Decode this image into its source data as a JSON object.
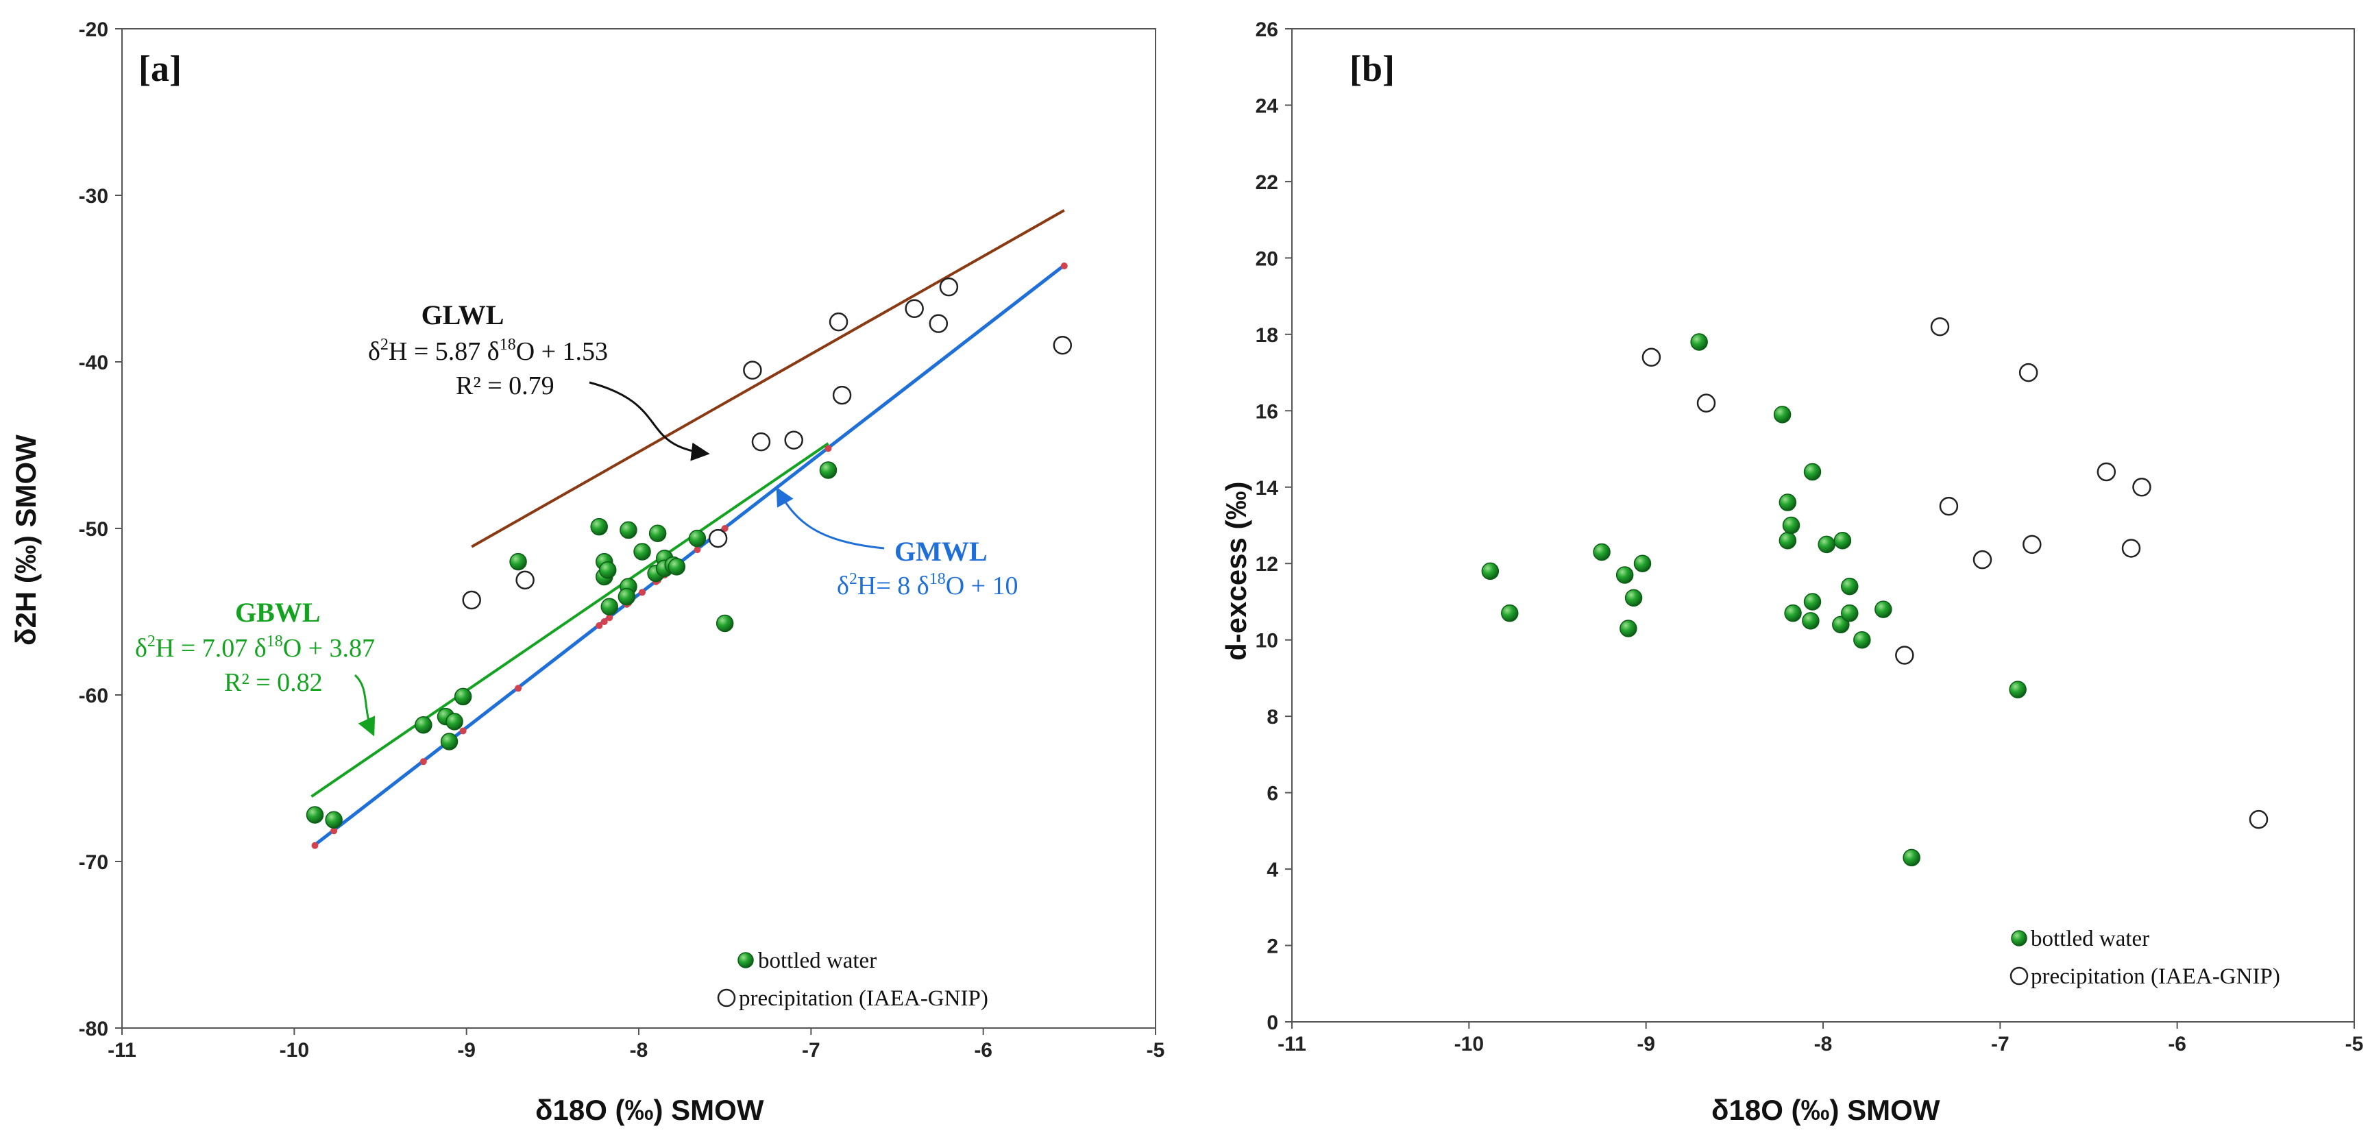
{
  "colors": {
    "bottled": "#1f9c2a",
    "bottled_edge": "#0c5e16",
    "precip_edge": "#222222",
    "gmwl": "#1f6fd8",
    "gbwl": "#14a320",
    "glwl": "#8a3a12",
    "gmwl_points": "#d2424e",
    "axis": "#555555"
  },
  "chart_data": [
    {
      "id": "a",
      "type": "scatter",
      "panel_label": "[a]",
      "xlabel": "δ18O (‰) SMOW",
      "ylabel": "δ2H (‰) SMOW",
      "xlim": [
        -11,
        -5
      ],
      "ylim": [
        -80,
        -20
      ],
      "x_ticks": [
        -11,
        -10,
        -9,
        -8,
        -7,
        -6,
        -5
      ],
      "y_ticks": [
        -80,
        -70,
        -60,
        -50,
        -40,
        -30,
        -20
      ],
      "x_tick_labels": [
        "-11",
        "-10",
        "-9",
        "-8",
        "-7",
        "-6",
        "-5"
      ],
      "y_tick_labels": [
        "-80",
        "-70",
        "-60",
        "-50",
        "-40",
        "-30",
        "-20"
      ],
      "series": [
        {
          "name": "bottled water",
          "marker": "filled",
          "points": [
            [
              -9.88,
              -67.2
            ],
            [
              -9.77,
              -67.5
            ],
            [
              -9.25,
              -61.8
            ],
            [
              -9.12,
              -61.3
            ],
            [
              -9.07,
              -61.6
            ],
            [
              -9.1,
              -62.8
            ],
            [
              -9.02,
              -60.1
            ],
            [
              -8.7,
              -52.0
            ],
            [
              -8.23,
              -49.9
            ],
            [
              -8.2,
              -52.0
            ],
            [
              -8.2,
              -52.9
            ],
            [
              -8.18,
              -52.5
            ],
            [
              -8.17,
              -54.7
            ],
            [
              -8.06,
              -50.1
            ],
            [
              -8.06,
              -53.5
            ],
            [
              -8.07,
              -54.1
            ],
            [
              -7.98,
              -51.4
            ],
            [
              -7.9,
              -52.7
            ],
            [
              -7.89,
              -50.3
            ],
            [
              -7.85,
              -51.8
            ],
            [
              -7.85,
              -52.4
            ],
            [
              -7.8,
              -52.2
            ],
            [
              -7.78,
              -52.3
            ],
            [
              -7.66,
              -50.6
            ],
            [
              -7.5,
              -55.7
            ],
            [
              -6.9,
              -46.5
            ]
          ]
        },
        {
          "name": "precipitation (IAEA-GNIP)",
          "marker": "open",
          "points": [
            [
              -8.97,
              -54.3
            ],
            [
              -8.66,
              -53.1
            ],
            [
              -7.54,
              -50.6
            ],
            [
              -7.34,
              -40.5
            ],
            [
              -7.29,
              -44.8
            ],
            [
              -7.1,
              -44.7
            ],
            [
              -6.84,
              -37.6
            ],
            [
              -6.82,
              -42.0
            ],
            [
              -6.4,
              -36.8
            ],
            [
              -6.26,
              -37.7
            ],
            [
              -6.2,
              -35.5
            ],
            [
              -5.54,
              -39.0
            ]
          ]
        }
      ],
      "lines": [
        {
          "name": "GMWL",
          "x": [
            -9.88,
            -5.53
          ],
          "y": [
            -69.0,
            -34.2
          ]
        },
        {
          "name": "GBWL",
          "x": [
            -9.9,
            -6.9
          ],
          "y": [
            -66.1,
            -44.9
          ]
        },
        {
          "name": "GLWL",
          "x": [
            -8.97,
            -5.53
          ],
          "y": [
            -51.1,
            -30.9
          ]
        }
      ],
      "gmwl_points_x": [
        -9.88,
        -9.77,
        -9.25,
        -9.1,
        -9.02,
        -8.7,
        -8.23,
        -8.2,
        -8.17,
        -8.07,
        -8.06,
        -7.98,
        -7.9,
        -7.89,
        -7.85,
        -7.8,
        -7.66,
        -7.5,
        -6.9,
        -5.53
      ],
      "annotations": {
        "glwl_title": "GLWL",
        "glwl_eq_1": "δ",
        "glwl_eq_2": "2",
        "glwl_eq_3": "H = 5.87 δ",
        "glwl_eq_4": "18",
        "glwl_eq_5": "O + 1.53",
        "glwl_r2": "R² = 0.79",
        "gmwl_title": "GMWL",
        "gmwl_eq_1": "δ",
        "gmwl_eq_2": "2",
        "gmwl_eq_3": "H= 8 δ",
        "gmwl_eq_4": "18",
        "gmwl_eq_5": "O + 10",
        "gbwl_title": "GBWL",
        "gbwl_eq_1": "δ",
        "gbwl_eq_2": "2",
        "gbwl_eq_3": "H = 7.07 δ",
        "gbwl_eq_4": "18",
        "gbwl_eq_5": "O + 3.87",
        "gbwl_r2": "R² = 0.82"
      },
      "legend": {
        "position": "bottom-right",
        "entries": [
          "bottled water",
          "precipitation (IAEA-GNIP)"
        ]
      }
    },
    {
      "id": "b",
      "type": "scatter",
      "panel_label": "[b]",
      "xlabel": "δ18O (‰) SMOW",
      "ylabel": "d-excess  (‰)",
      "xlim": [
        -11,
        -5
      ],
      "ylim": [
        0,
        26
      ],
      "x_ticks": [
        -11,
        -10,
        -9,
        -8,
        -7,
        -6,
        -5
      ],
      "y_ticks": [
        0,
        2,
        4,
        6,
        8,
        10,
        12,
        14,
        16,
        18,
        20,
        22,
        24,
        26
      ],
      "x_tick_labels": [
        "-11",
        "-10",
        "-9",
        "-8",
        "-7",
        "-6",
        "-5"
      ],
      "y_tick_labels": [
        "0",
        "2",
        "4",
        "6",
        "8",
        "10",
        "12",
        "14",
        "16",
        "18",
        "20",
        "22",
        "24",
        "26"
      ],
      "series": [
        {
          "name": "bottled water",
          "marker": "filled",
          "points": [
            [
              -9.88,
              11.8
            ],
            [
              -9.77,
              10.7
            ],
            [
              -9.25,
              12.3
            ],
            [
              -9.12,
              11.7
            ],
            [
              -9.07,
              11.1
            ],
            [
              -9.1,
              10.3
            ],
            [
              -9.02,
              12.0
            ],
            [
              -8.7,
              17.8
            ],
            [
              -8.23,
              15.9
            ],
            [
              -8.2,
              13.6
            ],
            [
              -8.2,
              12.6
            ],
            [
              -8.18,
              13.0
            ],
            [
              -8.17,
              10.7
            ],
            [
              -8.06,
              14.4
            ],
            [
              -8.06,
              11.0
            ],
            [
              -8.07,
              10.5
            ],
            [
              -7.98,
              12.5
            ],
            [
              -7.9,
              10.4
            ],
            [
              -7.89,
              12.6
            ],
            [
              -7.85,
              10.7
            ],
            [
              -7.85,
              11.4
            ],
            [
              -7.78,
              10.0
            ],
            [
              -7.66,
              10.8
            ],
            [
              -7.5,
              4.3
            ],
            [
              -6.9,
              8.7
            ]
          ]
        },
        {
          "name": "precipitation (IAEA-GNIP)",
          "marker": "open",
          "points": [
            [
              -8.97,
              17.4
            ],
            [
              -8.66,
              16.2
            ],
            [
              -7.54,
              9.6
            ],
            [
              -7.34,
              18.2
            ],
            [
              -7.29,
              13.5
            ],
            [
              -7.1,
              12.1
            ],
            [
              -6.84,
              17.0
            ],
            [
              -6.82,
              12.5
            ],
            [
              -6.4,
              14.4
            ],
            [
              -6.26,
              12.4
            ],
            [
              -6.2,
              14.0
            ],
            [
              -5.54,
              5.3
            ]
          ]
        }
      ],
      "legend": {
        "position": "bottom-right",
        "entries": [
          "bottled water",
          "precipitation (IAEA-GNIP)"
        ]
      }
    }
  ]
}
